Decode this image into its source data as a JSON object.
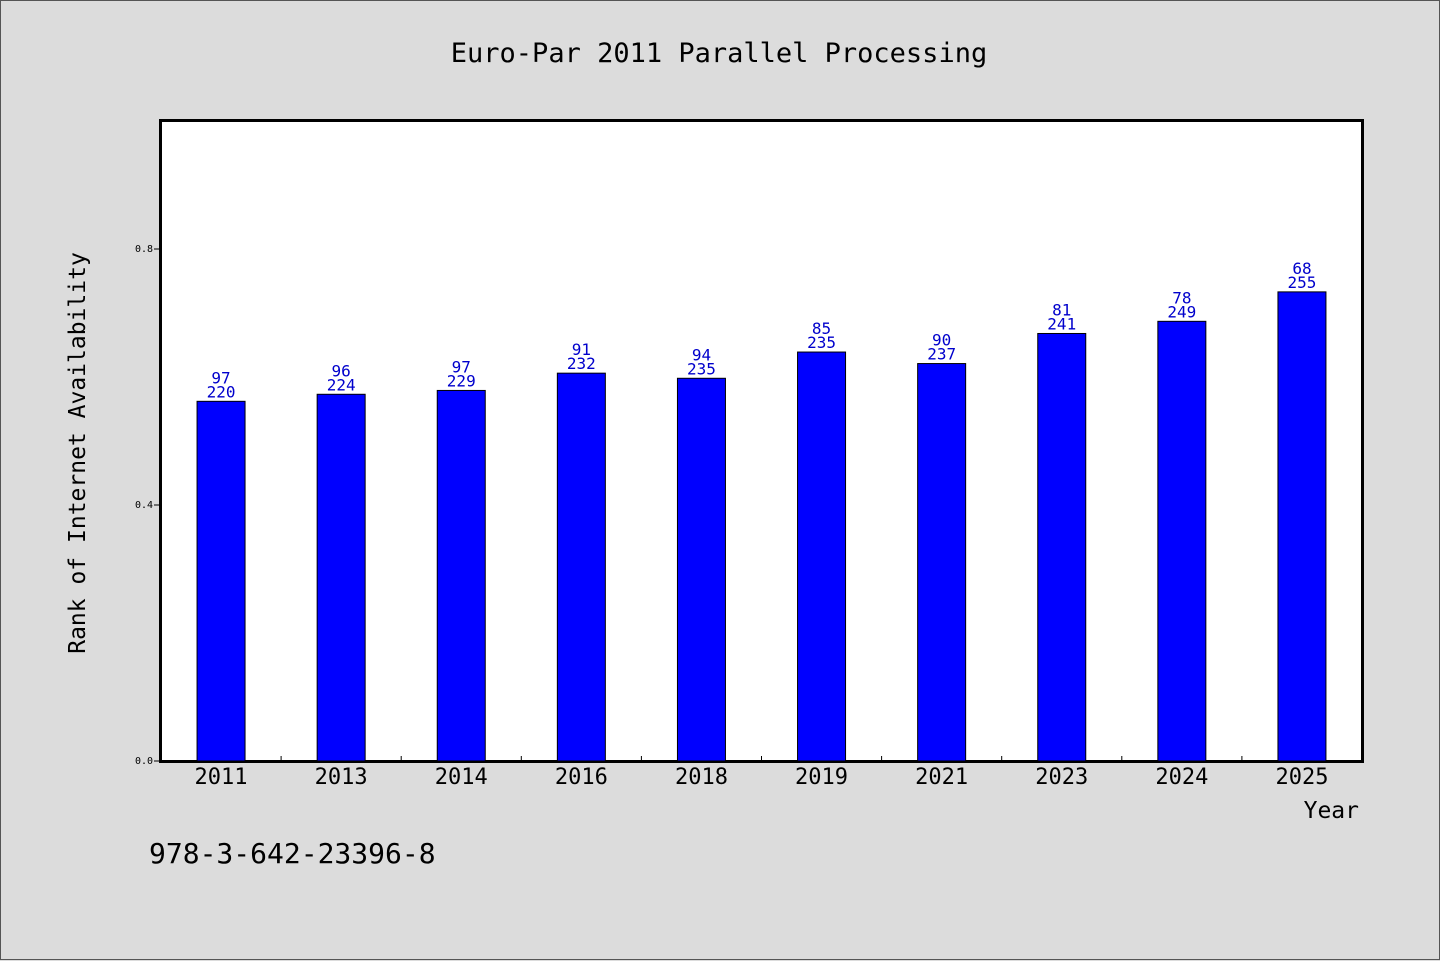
{
  "chart_data": {
    "type": "bar",
    "title": "Euro-Par 2011 Parallel Processing",
    "xlabel": "Year",
    "ylabel": "Rank of Internet Availability",
    "ylim": [
      0.0,
      1.0
    ],
    "yticks": [
      "0.0",
      "0.4",
      "0.8"
    ],
    "categories": [
      "2011",
      "2013",
      "2014",
      "2016",
      "2018",
      "2019",
      "2021",
      "2023",
      "2024",
      "2025"
    ],
    "values": [
      0.562,
      0.573,
      0.579,
      0.606,
      0.598,
      0.639,
      0.621,
      0.668,
      0.687,
      0.733
    ],
    "label_top": [
      "97",
      "96",
      "97",
      "91",
      "94",
      "85",
      "90",
      "81",
      "78",
      "68"
    ],
    "label_bottom": [
      "220",
      "224",
      "229",
      "232",
      "235",
      "235",
      "237",
      "241",
      "249",
      "255"
    ],
    "bar_color": "#0000ff",
    "grid": false,
    "legend": false
  },
  "footnote": "978-3-642-23396-8"
}
